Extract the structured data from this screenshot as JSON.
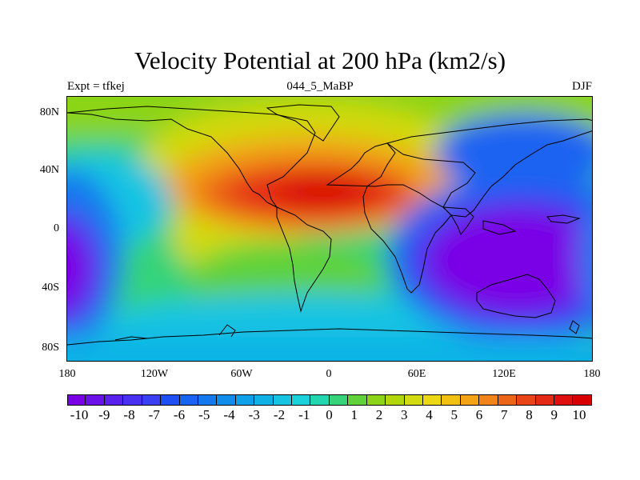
{
  "title": "Velocity Potential at 200 hPa (km2/s)",
  "subtitle_left": "Expt = tfkej",
  "subtitle_center": "044_5_MaBP",
  "subtitle_right": "DJF",
  "y_ticks": [
    "80N",
    "40N",
    "0",
    "40S",
    "80S"
  ],
  "x_ticks": [
    "180",
    "120W",
    "60W",
    "0",
    "60E",
    "120E",
    "180"
  ],
  "colorbar": {
    "labels": [
      "-10",
      "-9",
      "-8",
      "-7",
      "-6",
      "-5",
      "-4",
      "-3",
      "-2",
      "-1",
      "0",
      "1",
      "2",
      "3",
      "4",
      "5",
      "6",
      "7",
      "8",
      "9",
      "10"
    ],
    "colors": [
      "#7a00e6",
      "#6a10e8",
      "#5a20ec",
      "#4a30f0",
      "#3a3ff2",
      "#1e4ff5",
      "#1a64f2",
      "#1478ee",
      "#108ceb",
      "#0ea0e8",
      "#10b2e6",
      "#16c4e2",
      "#1ad2dc",
      "#22d6b0",
      "#36d37a",
      "#5fd23a",
      "#8cd418",
      "#b2d60c",
      "#d2da10",
      "#ecd810",
      "#f2c010",
      "#f2a414",
      "#f08418",
      "#ec6418",
      "#e84418",
      "#e42a14",
      "#e01010",
      "#d80000"
    ]
  },
  "chart_data": {
    "type": "heatmap",
    "title": "Velocity Potential at 200 hPa (km2/s)",
    "xlabel": "",
    "ylabel": "",
    "xlim": [
      -180,
      180
    ],
    "ylim": [
      -90,
      90
    ],
    "x_ticks": [
      "180",
      "120W",
      "60W",
      "0",
      "60E",
      "120E",
      "180"
    ],
    "y_ticks": [
      "80N",
      "40N",
      "0",
      "40S",
      "80S"
    ],
    "levels": [
      -10,
      -9,
      -8,
      -7,
      -6,
      -5,
      -4,
      -3,
      -2,
      -1,
      0,
      1,
      2,
      3,
      4,
      5,
      6,
      7,
      8,
      9,
      10
    ],
    "centers": [
      {
        "lon": -10,
        "lat": 22,
        "value": 10
      },
      {
        "lon": 145,
        "lat": -22,
        "value": -10
      },
      {
        "lon": -172,
        "lat": -30,
        "value": -10
      }
    ],
    "legend": "bottom"
  }
}
